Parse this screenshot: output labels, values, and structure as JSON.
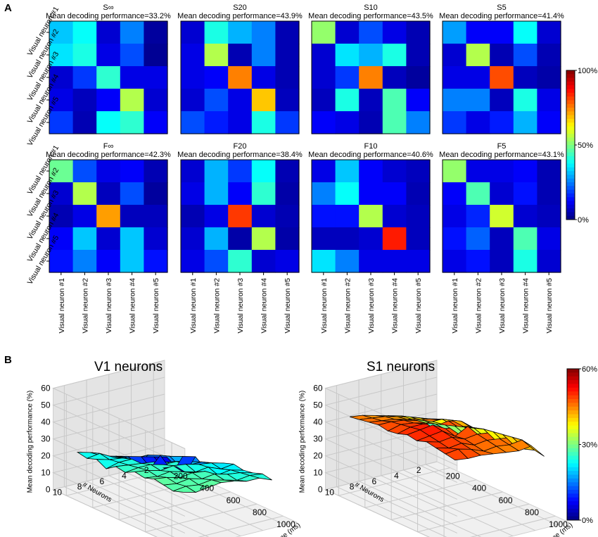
{
  "panels": {
    "a": "A",
    "b": "B"
  },
  "heatmap_axis_labels": [
    "Visual neuron #1",
    "Visual neuron #2",
    "Visual neuron #3",
    "Visual neuron #4",
    "Visual neuron #5"
  ],
  "colorbar_a": {
    "ticks": [
      "100%",
      "50%",
      "0%"
    ]
  },
  "colorbar_b": {
    "ticks": [
      "60%",
      "30%",
      "0%"
    ]
  },
  "colors": {
    "jet_min": "#00007f",
    "jet_max": "#7f0000",
    "gridline": "#000000",
    "surface_edge": "#000000"
  },
  "chart_data": [
    {
      "type": "heatmap",
      "label": "S∞",
      "subtitle": "Mean decoding performance=33.2%",
      "vmin": 0,
      "vmax": 100,
      "values": [
        [
          32,
          38,
          8,
          25,
          3
        ],
        [
          35,
          40,
          10,
          20,
          2
        ],
        [
          8,
          18,
          42,
          10,
          10
        ],
        [
          10,
          6,
          12,
          55,
          8
        ],
        [
          18,
          5,
          38,
          42,
          12
        ]
      ]
    },
    {
      "type": "heatmap",
      "label": "S20",
      "subtitle": "Mean decoding performance=43.9%",
      "vmin": 0,
      "vmax": 100,
      "values": [
        [
          8,
          40,
          30,
          25,
          5
        ],
        [
          10,
          55,
          5,
          25,
          5
        ],
        [
          10,
          12,
          75,
          10,
          5
        ],
        [
          8,
          20,
          10,
          68,
          6
        ],
        [
          20,
          15,
          10,
          40,
          18
        ]
      ]
    },
    {
      "type": "heatmap",
      "label": "S10",
      "subtitle": "Mean decoding performance=43.5%",
      "vmin": 0,
      "vmax": 100,
      "values": [
        [
          52,
          8,
          20,
          10,
          5
        ],
        [
          8,
          35,
          30,
          40,
          5
        ],
        [
          8,
          18,
          75,
          6,
          3
        ],
        [
          6,
          40,
          6,
          45,
          12
        ],
        [
          12,
          10,
          5,
          45,
          25
        ]
      ]
    },
    {
      "type": "heatmap",
      "label": "S5",
      "subtitle": "Mean decoding performance=41.4%",
      "vmin": 0,
      "vmax": 100,
      "values": [
        [
          28,
          12,
          12,
          38,
          8
        ],
        [
          8,
          55,
          5,
          20,
          5
        ],
        [
          10,
          10,
          80,
          6,
          4
        ],
        [
          25,
          25,
          6,
          40,
          10
        ],
        [
          18,
          10,
          15,
          30,
          12
        ]
      ]
    },
    {
      "type": "heatmap",
      "label": "F∞",
      "subtitle": "Mean decoding performance=42.3%",
      "vmin": 0,
      "vmax": 100,
      "values": [
        [
          48,
          20,
          10,
          12,
          5
        ],
        [
          8,
          55,
          6,
          20,
          3
        ],
        [
          5,
          10,
          72,
          6,
          6
        ],
        [
          12,
          32,
          8,
          32,
          8
        ],
        [
          14,
          25,
          12,
          32,
          14
        ]
      ]
    },
    {
      "type": "heatmap",
      "label": "F20",
      "subtitle": "Mean decoding performance=38.4%",
      "vmin": 0,
      "vmax": 100,
      "values": [
        [
          8,
          30,
          18,
          38,
          5
        ],
        [
          10,
          30,
          12,
          42,
          4
        ],
        [
          5,
          10,
          82,
          8,
          5
        ],
        [
          8,
          30,
          4,
          55,
          4
        ],
        [
          10,
          20,
          42,
          8,
          10
        ]
      ]
    },
    {
      "type": "heatmap",
      "label": "F10",
      "subtitle": "Mean decoding performance=40.6%",
      "vmin": 0,
      "vmax": 100,
      "values": [
        [
          10,
          32,
          12,
          8,
          6
        ],
        [
          25,
          38,
          12,
          12,
          5
        ],
        [
          14,
          14,
          55,
          8,
          6
        ],
        [
          6,
          6,
          8,
          85,
          6
        ],
        [
          35,
          25,
          10,
          10,
          10
        ]
      ]
    },
    {
      "type": "heatmap",
      "label": "F5",
      "subtitle": "Mean decoding performance=43.1%",
      "vmin": 0,
      "vmax": 100,
      "values": [
        [
          52,
          10,
          10,
          12,
          5
        ],
        [
          12,
          45,
          8,
          14,
          5
        ],
        [
          10,
          16,
          58,
          8,
          6
        ],
        [
          14,
          22,
          6,
          45,
          10
        ],
        [
          10,
          14,
          6,
          40,
          8
        ]
      ]
    },
    {
      "type": "surface3d",
      "title": "V1 neurons",
      "zlabel": "Mean decoding performance (%)",
      "xlabel": "Time (ms)",
      "ylabel": "# Neurons",
      "x_ticks": [
        200,
        400,
        600,
        800,
        1000
      ],
      "y_ticks": [
        2,
        4,
        6,
        8,
        10
      ],
      "z_ticks": [
        0,
        10,
        20,
        30,
        40,
        50,
        60
      ],
      "xlim": [
        100,
        1100
      ],
      "ylim": [
        1,
        11
      ],
      "zlim": [
        0,
        60
      ],
      "cmin": 0,
      "cmax": 60,
      "z": [
        [
          24,
          23,
          25,
          22,
          26,
          25,
          28,
          27,
          29,
          28,
          27,
          29
        ],
        [
          22,
          24,
          23,
          24,
          25,
          26,
          27,
          26,
          28,
          27,
          28,
          27
        ],
        [
          18,
          20,
          22,
          24,
          24,
          26,
          25,
          27,
          26,
          28,
          27,
          28
        ],
        [
          16,
          18,
          20,
          22,
          23,
          24,
          26,
          25,
          27,
          26,
          28,
          29
        ],
        [
          14,
          10,
          20,
          22,
          21,
          24,
          25,
          23,
          26,
          27,
          26,
          28
        ],
        [
          12,
          8,
          18,
          20,
          17,
          22,
          23,
          24,
          22,
          25,
          24,
          26
        ],
        [
          10,
          6,
          6,
          18,
          16,
          20,
          22,
          21,
          23,
          24,
          25,
          26
        ],
        [
          8,
          5,
          4,
          16,
          12,
          17,
          20,
          22,
          21,
          22,
          24,
          23
        ]
      ]
    },
    {
      "type": "surface3d",
      "title": "S1 neurons",
      "zlabel": "Mean decoding performance (%)",
      "xlabel": "Time (ms)",
      "ylabel": "# Neurons",
      "x_ticks": [
        200,
        400,
        600,
        800,
        1000
      ],
      "y_ticks": [
        2,
        4,
        6,
        8,
        10
      ],
      "z_ticks": [
        0,
        10,
        20,
        30,
        40,
        50,
        60
      ],
      "xlim": [
        100,
        1100
      ],
      "ylim": [
        1,
        11
      ],
      "zlim": [
        0,
        60
      ],
      "cmin": 0,
      "cmax": 60,
      "z": [
        [
          45,
          46,
          47,
          48,
          47,
          48,
          50,
          49,
          51,
          50,
          49,
          48
        ],
        [
          44,
          45,
          46,
          48,
          49,
          50,
          51,
          50,
          49,
          48,
          50,
          47
        ],
        [
          42,
          44,
          45,
          47,
          48,
          50,
          52,
          51,
          50,
          49,
          48,
          47
        ],
        [
          40,
          42,
          43,
          45,
          46,
          47,
          48,
          46,
          47,
          46,
          45,
          46
        ],
        [
          38,
          40,
          42,
          44,
          46,
          48,
          47,
          50,
          48,
          47,
          46,
          45
        ],
        [
          34,
          36,
          38,
          42,
          44,
          46,
          45,
          44,
          47,
          46,
          45,
          44
        ],
        [
          30,
          32,
          34,
          36,
          38,
          40,
          42,
          43,
          44,
          45,
          46,
          45
        ],
        [
          22,
          26,
          27,
          28,
          30,
          32,
          33,
          34,
          35,
          36,
          38,
          37
        ]
      ]
    }
  ]
}
